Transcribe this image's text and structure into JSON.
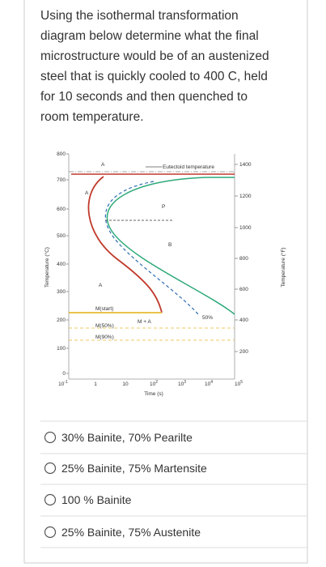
{
  "question": {
    "lines": [
      "Using the isothermal transformation",
      "diagram below determine what the final",
      "microstructure would be of an austenized",
      "steel that is quickly cooled to 400 C, held",
      "for 10 seconds and then quenched to",
      "room temperature."
    ]
  },
  "diagram": {
    "y_left_title": "Temperature (°C)",
    "y_left_ticks": [
      800,
      700,
      600,
      500,
      400,
      300,
      200,
      100,
      0
    ],
    "y_right_title": "Temperature (°F)",
    "y_right_ticks": [
      1400,
      1200,
      1000,
      800,
      600,
      400,
      200
    ],
    "x_title": "Time (s)",
    "x_ticks": [
      {
        "base": "10",
        "exp": "-1"
      },
      "1",
      "10",
      {
        "base": "10",
        "exp": "2"
      },
      {
        "base": "10",
        "exp": "3"
      },
      {
        "base": "10",
        "exp": "4"
      },
      {
        "base": "10",
        "exp": "5"
      }
    ],
    "labels": [
      "Eutectoid temperature",
      "A",
      "A",
      "P",
      "B",
      "A",
      "M(start)",
      "M(50%)",
      "M(90%)",
      "M + A",
      "50%"
    ]
  },
  "options": [
    "30% Bainite, 70% Pearilte",
    "25% Bainite, 75% Martensite",
    "100 % Bainite",
    "25% Bainite, 75% Austenite"
  ]
}
